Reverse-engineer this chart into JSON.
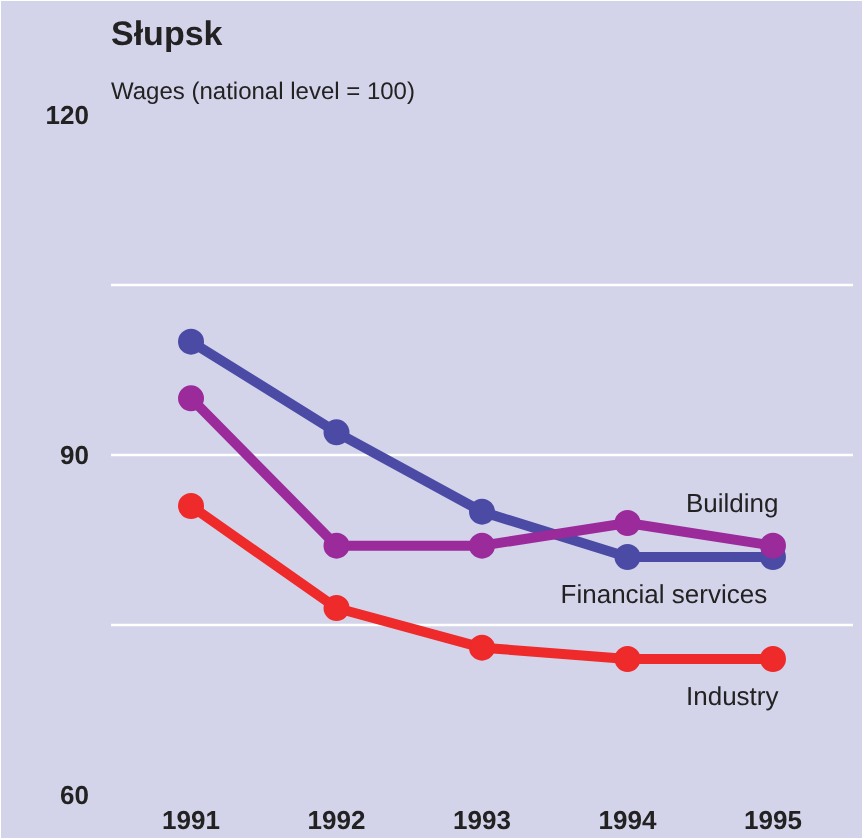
{
  "chart_data": {
    "type": "line",
    "title": "Słupsk",
    "subtitle": "Wages (national level = 100)",
    "categories": [
      "1991",
      "1992",
      "1993",
      "1994",
      "1995"
    ],
    "series": [
      {
        "name": "Financial services",
        "color": "#4b4ba6",
        "values": [
          100,
          92,
          85,
          81,
          81
        ]
      },
      {
        "name": "Building",
        "color": "#9b2a9b",
        "values": [
          95,
          82,
          82,
          84,
          82
        ]
      },
      {
        "name": "Industry",
        "color": "#ee2a2a",
        "values": [
          85.5,
          76.5,
          73,
          72,
          72
        ]
      }
    ],
    "ylim": [
      60,
      120
    ],
    "yticks": [
      60,
      {
        "value": 75,
        "label": null
      },
      90,
      {
        "value": 105,
        "label": null
      },
      120
    ],
    "grid": "y",
    "legend": false,
    "marker": "circle",
    "line_style": "solid"
  }
}
